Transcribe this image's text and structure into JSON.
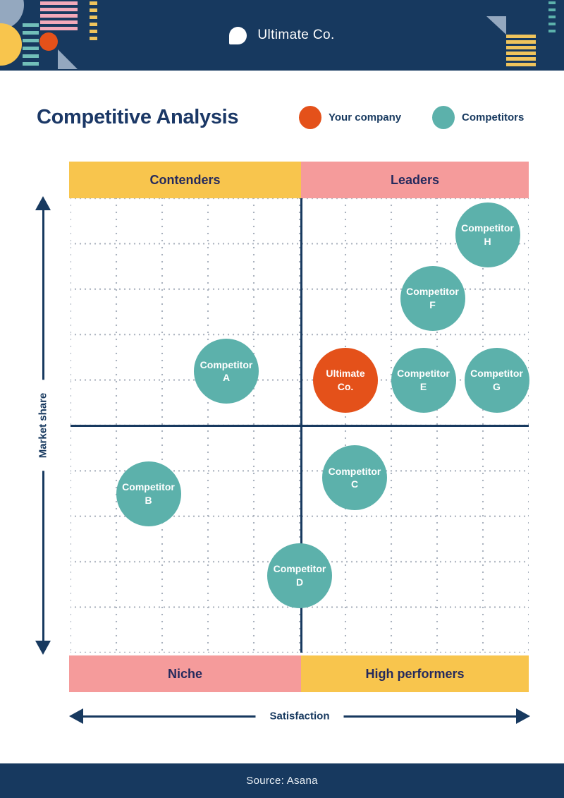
{
  "header": {
    "brand": "Ultimate Co."
  },
  "title": "Competitive Analysis",
  "legend": {
    "your_company": "Your company",
    "competitors": "Competitors"
  },
  "quadrant_labels": {
    "top_left": "Contenders",
    "top_right": "Leaders",
    "bottom_left": "Niche",
    "bottom_right": "High performers"
  },
  "axis": {
    "x_label": "Satisfaction",
    "y_label": "Market share"
  },
  "footer": {
    "source_text": "Source: Asana"
  },
  "colors": {
    "navy": "#17395F",
    "yellow": "#F8C54D",
    "pink": "#F59B9B",
    "teal": "#5CB1AB",
    "orange": "#E4511A",
    "grid_dot": "#AAB2BE"
  },
  "chart_data": {
    "type": "scatter",
    "title": "Competitive Analysis",
    "xlabel": "Satisfaction",
    "ylabel": "Market share",
    "xlim": [
      0,
      10
    ],
    "ylim": [
      0,
      10
    ],
    "grid": "dotted",
    "legend_position": "top-right of title row",
    "quadrants": {
      "top_left": "Contenders",
      "top_right": "Leaders",
      "bottom_left": "Niche",
      "bottom_right": "High performers"
    },
    "series": [
      {
        "name": "Your company",
        "color": "#E4511A",
        "points": [
          {
            "label": "Ultimate Co.",
            "label_lines": [
              "Ultimate",
              "Co."
            ],
            "x": 6.0,
            "y": 6.0
          }
        ]
      },
      {
        "name": "Competitors",
        "color": "#5CB1AB",
        "points": [
          {
            "label": "Competitor A",
            "label_lines": [
              "Competitor",
              "A"
            ],
            "x": 3.4,
            "y": 6.2
          },
          {
            "label": "Competitor B",
            "label_lines": [
              "Competitor",
              "B"
            ],
            "x": 1.7,
            "y": 3.5
          },
          {
            "label": "Competitor C",
            "label_lines": [
              "Competitor",
              "C"
            ],
            "x": 6.2,
            "y": 3.85
          },
          {
            "label": "Competitor D",
            "label_lines": [
              "Competitor",
              "D"
            ],
            "x": 5.0,
            "y": 1.7
          },
          {
            "label": "Competitor E",
            "label_lines": [
              "Competitor",
              "E"
            ],
            "x": 7.7,
            "y": 6.0
          },
          {
            "label": "Competitor F",
            "label_lines": [
              "Competitor",
              "F"
            ],
            "x": 7.9,
            "y": 7.8
          },
          {
            "label": "Competitor G",
            "label_lines": [
              "Competitor",
              "G"
            ],
            "x": 9.3,
            "y": 6.0
          },
          {
            "label": "Competitor H",
            "label_lines": [
              "Competitor",
              "H"
            ],
            "x": 9.1,
            "y": 9.2
          }
        ]
      }
    ]
  }
}
